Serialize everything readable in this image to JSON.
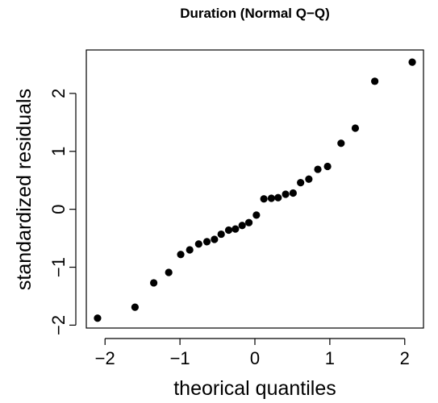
{
  "chart_data": {
    "type": "scatter",
    "title": "Duration (Normal Q−Q)",
    "xlabel": "theorical quantiles",
    "ylabel": "standardized residuals",
    "xlim": [
      -2.25,
      2.25
    ],
    "ylim": [
      -2.05,
      2.75
    ],
    "xticks": [
      -2,
      -1,
      0,
      1,
      2
    ],
    "xtick_labels": [
      "−2",
      "−1",
      "0",
      "1",
      "2"
    ],
    "yticks": [
      -2,
      -1,
      0,
      1,
      2
    ],
    "ytick_labels": [
      "−2",
      "−1",
      "0",
      "1",
      "2"
    ],
    "grid": false,
    "point_color": "#000000",
    "points": {
      "x": [
        -2.1,
        -1.6,
        -1.35,
        -1.15,
        -0.99,
        -0.87,
        -0.75,
        -0.64,
        -0.54,
        -0.45,
        -0.35,
        -0.26,
        -0.17,
        -0.08,
        0.02,
        0.12,
        0.22,
        0.31,
        0.41,
        0.51,
        0.61,
        0.72,
        0.84,
        0.97,
        1.15,
        1.34,
        1.6,
        2.1
      ],
      "y": [
        -1.88,
        -1.69,
        -1.27,
        -1.09,
        -0.78,
        -0.7,
        -0.6,
        -0.56,
        -0.52,
        -0.43,
        -0.36,
        -0.34,
        -0.28,
        -0.23,
        -0.1,
        0.18,
        0.19,
        0.2,
        0.26,
        0.28,
        0.46,
        0.52,
        0.69,
        0.74,
        1.14,
        1.4,
        2.21,
        2.54
      ]
    }
  }
}
